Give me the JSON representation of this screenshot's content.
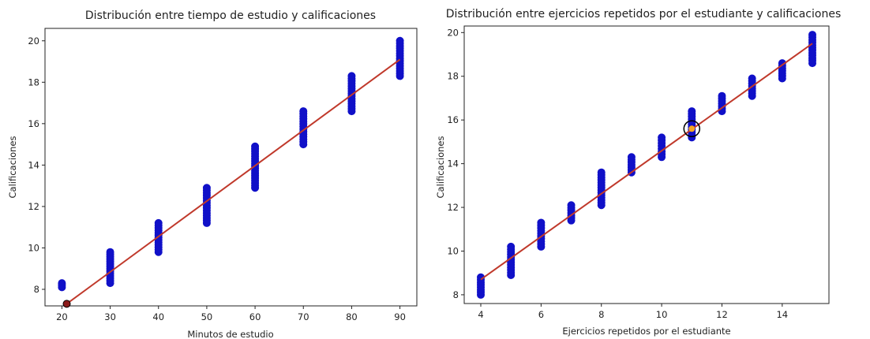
{
  "chart_data": [
    {
      "type": "scatter",
      "title": "Distribución entre tiempo de estudio y calificaciones",
      "xlabel": "Minutos de estudio",
      "ylabel": "Calificaciones",
      "xlim": [
        16.5,
        93.5
      ],
      "ylim": [
        7.2,
        20.6
      ],
      "xticks": [
        20,
        30,
        40,
        50,
        60,
        70,
        80,
        90
      ],
      "yticks": [
        8,
        10,
        12,
        14,
        16,
        18,
        20
      ],
      "grid": false,
      "point_color": "#1010c8",
      "line_color": "#c0392b",
      "points": [
        {
          "x": 20,
          "y_min": 8.1,
          "y_max": 8.3
        },
        {
          "x": 30,
          "y_min": 8.3,
          "y_max": 9.8
        },
        {
          "x": 40,
          "y_min": 9.8,
          "y_max": 11.2
        },
        {
          "x": 50,
          "y_min": 11.2,
          "y_max": 12.9
        },
        {
          "x": 60,
          "y_min": 12.9,
          "y_max": 14.9
        },
        {
          "x": 70,
          "y_min": 15.0,
          "y_max": 16.6
        },
        {
          "x": 80,
          "y_min": 16.6,
          "y_max": 18.3
        },
        {
          "x": 90,
          "y_min": 18.3,
          "y_max": 20.0
        }
      ],
      "fit_line": [
        [
          21,
          7.3
        ],
        [
          90,
          19.1
        ]
      ],
      "marker": {
        "x": 21,
        "y": 7.3,
        "color": "#8b1a1a"
      }
    },
    {
      "type": "scatter",
      "title": "Distribución entre ejercicios repetidos por el estudiante y calificaciones",
      "xlabel": "Ejercicios repetidos por el estudiante",
      "ylabel": "Calificaciones",
      "xlim": [
        3.45,
        15.55
      ],
      "ylim": [
        7.6,
        20.3
      ],
      "xticks": [
        4,
        6,
        8,
        10,
        12,
        14
      ],
      "yticks": [
        8,
        10,
        12,
        14,
        16,
        18,
        20
      ],
      "grid": false,
      "point_color": "#1010c8",
      "line_color": "#c0392b",
      "points": [
        {
          "x": 4,
          "y_min": 8.0,
          "y_max": 8.8
        },
        {
          "x": 5,
          "y_min": 8.9,
          "y_max": 10.2
        },
        {
          "x": 6,
          "y_min": 10.2,
          "y_max": 11.3
        },
        {
          "x": 7,
          "y_min": 11.4,
          "y_max": 12.1
        },
        {
          "x": 8,
          "y_min": 12.1,
          "y_max": 13.6
        },
        {
          "x": 9,
          "y_min": 13.6,
          "y_max": 14.3
        },
        {
          "x": 10,
          "y_min": 14.3,
          "y_max": 15.2
        },
        {
          "x": 11,
          "y_min": 15.2,
          "y_max": 16.4
        },
        {
          "x": 12,
          "y_min": 16.4,
          "y_max": 17.1
        },
        {
          "x": 13,
          "y_min": 17.1,
          "y_max": 17.9
        },
        {
          "x": 14,
          "y_min": 17.9,
          "y_max": 18.6
        },
        {
          "x": 15,
          "y_min": 18.6,
          "y_max": 19.9
        }
      ],
      "fit_line": [
        [
          4,
          8.7
        ],
        [
          15,
          19.5
        ]
      ],
      "marker": {
        "x": 11,
        "y": 15.6,
        "color": "#f5a623"
      }
    }
  ]
}
